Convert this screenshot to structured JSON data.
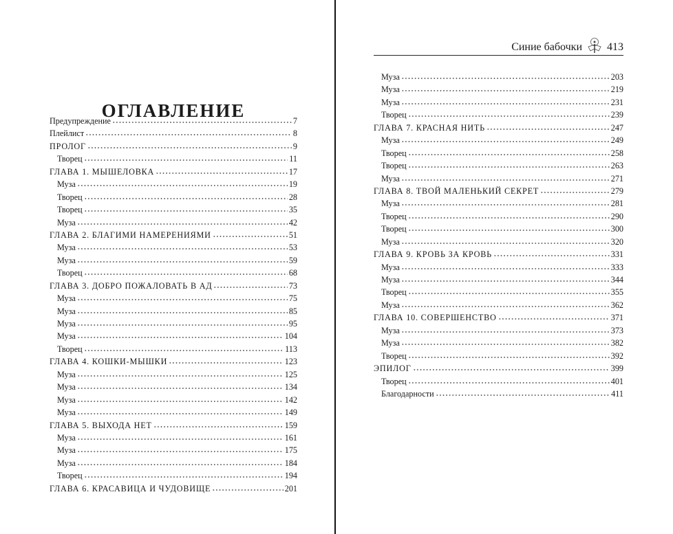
{
  "left_page": {
    "title": "ОГЛАВЛЕНИЕ",
    "entries": [
      {
        "label": "Предупреждение",
        "page": "7",
        "level": "top"
      },
      {
        "label": "Плейлист",
        "page": "8",
        "level": "top"
      },
      {
        "label": "ПРОЛОГ",
        "page": "9",
        "level": "chapter"
      },
      {
        "label": "Творец",
        "page": "11",
        "level": "sub"
      },
      {
        "label": "ГЛАВА 1. МЫШЕЛОВКА",
        "page": "17",
        "level": "chapter"
      },
      {
        "label": "Муза",
        "page": "19",
        "level": "sub"
      },
      {
        "label": "Творец",
        "page": "28",
        "level": "sub"
      },
      {
        "label": "Творец",
        "page": "35",
        "level": "sub"
      },
      {
        "label": "Муза",
        "page": "42",
        "level": "sub"
      },
      {
        "label": "ГЛАВА 2. БЛАГИМИ НАМЕРЕНИЯМИ",
        "page": "51",
        "level": "chapter"
      },
      {
        "label": "Муза",
        "page": "53",
        "level": "sub"
      },
      {
        "label": "Муза",
        "page": "59",
        "level": "sub"
      },
      {
        "label": "Творец",
        "page": "68",
        "level": "sub"
      },
      {
        "label": "ГЛАВА 3. ДОБРО ПОЖАЛОВАТЬ В АД",
        "page": "73",
        "level": "chapter"
      },
      {
        "label": "Муза",
        "page": "75",
        "level": "sub"
      },
      {
        "label": "Муза",
        "page": "85",
        "level": "sub"
      },
      {
        "label": "Муза",
        "page": "95",
        "level": "sub"
      },
      {
        "label": "Муза",
        "page": "104",
        "level": "sub"
      },
      {
        "label": "Творец",
        "page": "113",
        "level": "sub"
      },
      {
        "label": "ГЛАВА 4. КОШКИ-МЫШКИ",
        "page": "123",
        "level": "chapter"
      },
      {
        "label": "Муза",
        "page": "125",
        "level": "sub"
      },
      {
        "label": "Муза",
        "page": "134",
        "level": "sub"
      },
      {
        "label": "Муза",
        "page": "142",
        "level": "sub"
      },
      {
        "label": "Муза",
        "page": "149",
        "level": "sub"
      },
      {
        "label": "ГЛАВА 5. ВЫХОДА НЕТ",
        "page": "159",
        "level": "chapter"
      },
      {
        "label": "Муза",
        "page": "161",
        "level": "sub"
      },
      {
        "label": "Муза",
        "page": "175",
        "level": "sub"
      },
      {
        "label": "Муза",
        "page": "184",
        "level": "sub"
      },
      {
        "label": "Творец",
        "page": "194",
        "level": "sub"
      },
      {
        "label": "ГЛАВА 6. КРАСАВИЦА И ЧУДОВИЩЕ",
        "page": "201",
        "level": "chapter"
      }
    ]
  },
  "right_page": {
    "running_head": "Синие бабочки",
    "page_number": "413",
    "emblem_icon": "moth-emblem",
    "entries": [
      {
        "label": "Муза",
        "page": "203",
        "level": "sub"
      },
      {
        "label": "Муза",
        "page": "219",
        "level": "sub"
      },
      {
        "label": "Муза",
        "page": "231",
        "level": "sub"
      },
      {
        "label": "Творец",
        "page": "239",
        "level": "sub"
      },
      {
        "label": "ГЛАВА 7. КРАСНАЯ НИТЬ",
        "page": "247",
        "level": "chapter"
      },
      {
        "label": "Муза",
        "page": "249",
        "level": "sub"
      },
      {
        "label": "Творец",
        "page": "258",
        "level": "sub"
      },
      {
        "label": "Творец",
        "page": "263",
        "level": "sub"
      },
      {
        "label": "Муза",
        "page": "271",
        "level": "sub"
      },
      {
        "label": "ГЛАВА 8. ТВОЙ МАЛЕНЬКИЙ СЕКРЕТ",
        "page": "279",
        "level": "chapter"
      },
      {
        "label": "Муза",
        "page": "281",
        "level": "sub"
      },
      {
        "label": "Творец",
        "page": "290",
        "level": "sub"
      },
      {
        "label": "Творец",
        "page": "300",
        "level": "sub"
      },
      {
        "label": "Муза",
        "page": "320",
        "level": "sub"
      },
      {
        "label": "ГЛАВА 9. КРОВЬ ЗА КРОВЬ",
        "page": "331",
        "level": "chapter"
      },
      {
        "label": "Муза",
        "page": "333",
        "level": "sub"
      },
      {
        "label": "Муза",
        "page": "344",
        "level": "sub"
      },
      {
        "label": "Творец",
        "page": "355",
        "level": "sub"
      },
      {
        "label": "Муза",
        "page": "362",
        "level": "sub"
      },
      {
        "label": "ГЛАВА 10. СОВЕРШЕНСТВО",
        "page": "371",
        "level": "chapter"
      },
      {
        "label": "Муза",
        "page": "373",
        "level": "sub"
      },
      {
        "label": "Муза",
        "page": "382",
        "level": "sub"
      },
      {
        "label": "Творец",
        "page": "392",
        "level": "sub"
      },
      {
        "label": "ЭПИЛОГ",
        "page": "399",
        "level": "chapter"
      },
      {
        "label": "Творец",
        "page": "401",
        "level": "sub"
      },
      {
        "label": "Благодарности",
        "page": "411",
        "level": "sub"
      }
    ]
  }
}
